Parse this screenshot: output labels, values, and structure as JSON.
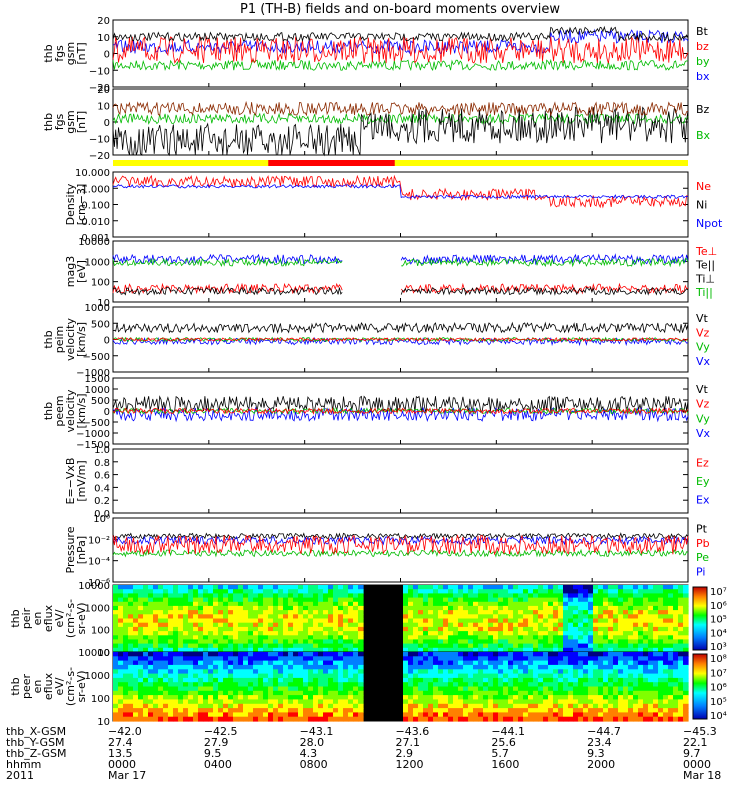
{
  "chart_data": {
    "type": "line",
    "title": "P1  (TH-B) fields and on-board moments overview",
    "panels": [
      {
        "ylabel": [
          "thb",
          "fgs",
          "gsm",
          "[nT]"
        ],
        "yticks": [
          "20",
          "10",
          "0",
          "−10",
          "−20"
        ],
        "ylim": [
          -20,
          20
        ],
        "legend": [
          {
            "text": "Bt",
            "color": "#000000"
          },
          {
            "text": "bz",
            "color": "#ff0000"
          },
          {
            "text": "by",
            "color": "#00bb00"
          },
          {
            "text": "bx",
            "color": "#0000ff"
          }
        ]
      },
      {
        "ylabel": [
          "thb",
          "fgs",
          "gsm",
          "[nT]"
        ],
        "yticks": [
          "20",
          "10",
          "0",
          "−10",
          "−20"
        ],
        "ylim": [
          -20,
          20
        ],
        "legend": [
          {
            "text": "Bz",
            "color": "#000000"
          },
          {
            "text": "Bx",
            "color": "#00bb00"
          }
        ]
      },
      {
        "ylabel": [
          "Density",
          "[cm−3]"
        ],
        "yticks": [
          "10.000",
          "1.000",
          "0.100",
          "0.010",
          "0.001"
        ],
        "scale": "log",
        "legend": [
          {
            "text": "Ne",
            "color": "#ff0000"
          },
          {
            "text": "Ni",
            "color": "#000000"
          },
          {
            "text": "Npot",
            "color": "#0000ff"
          }
        ]
      },
      {
        "ylabel": [
          "mag3",
          "[eV]"
        ],
        "yticks": [
          "10000",
          "1000",
          "100",
          "10"
        ],
        "scale": "log",
        "legend": [
          {
            "text": "Te⊥",
            "color": "#ff0000"
          },
          {
            "text": "Te||",
            "color": "#000000"
          },
          {
            "text": "Ti⊥",
            "color": "#000000"
          },
          {
            "text": "Ti||",
            "color": "#00bb00"
          }
        ]
      },
      {
        "ylabel": [
          "thb",
          "peim",
          "velocity",
          "[km/s]"
        ],
        "yticks": [
          "1000",
          "500",
          "0",
          "−500",
          "−1000"
        ],
        "ylim": [
          -1000,
          1000
        ],
        "legend": [
          {
            "text": "Vt",
            "color": "#000000"
          },
          {
            "text": "Vz",
            "color": "#ff0000"
          },
          {
            "text": "Vy",
            "color": "#00bb00"
          },
          {
            "text": "Vx",
            "color": "#0000ff"
          }
        ]
      },
      {
        "ylabel": [
          "thb",
          "peem",
          "velocity",
          "[km/s]"
        ],
        "yticks": [
          "1500",
          "1000",
          "500",
          "0",
          "−500",
          "−1000",
          "−1500"
        ],
        "ylim": [
          -1500,
          1500
        ],
        "legend": [
          {
            "text": "Vt",
            "color": "#000000"
          },
          {
            "text": "Vz",
            "color": "#ff0000"
          },
          {
            "text": "Vy",
            "color": "#00bb00"
          },
          {
            "text": "Vx",
            "color": "#0000ff"
          }
        ]
      },
      {
        "ylabel": [
          "E=−VxB",
          "[mV/m]"
        ],
        "yticks": [
          "1.0",
          "0.8",
          "0.6",
          "0.4",
          "0.2",
          "0.0"
        ],
        "ylim": [
          0,
          1
        ],
        "legend": [
          {
            "text": "Ez",
            "color": "#ff0000"
          },
          {
            "text": "Ey",
            "color": "#00bb00"
          },
          {
            "text": "Ex",
            "color": "#0000ff"
          }
        ]
      },
      {
        "ylabel": [
          "Pressure",
          "[nPa]"
        ],
        "yticks": [
          "10⁰",
          "10⁻²",
          "10⁻⁴",
          "10⁻⁶"
        ],
        "scale": "log",
        "legend": [
          {
            "text": "Pt",
            "color": "#000000"
          },
          {
            "text": "Pb",
            "color": "#ff0000"
          },
          {
            "text": "Pe",
            "color": "#00bb00"
          },
          {
            "text": "Pi",
            "color": "#0000ff"
          }
        ]
      },
      {
        "ylabel": [
          "thb",
          "peir",
          "en",
          "eflux",
          "eV/",
          "(cm²-s-",
          "sr-eV)"
        ],
        "yticks": [
          "10000",
          "1000",
          "100",
          "10"
        ],
        "type": "heatmap",
        "colorbar": [
          "10⁷",
          "10⁶",
          "10⁵",
          "10⁴",
          "10³"
        ]
      },
      {
        "ylabel": [
          "thb",
          "peer",
          "en",
          "eflux",
          "eV/",
          "(cm²-s-",
          "sr-eV)"
        ],
        "yticks": [
          "10000",
          "1000",
          "100",
          "10"
        ],
        "type": "heatmap",
        "colorbar": [
          "10⁸",
          "10⁷",
          "10⁶",
          "10⁵",
          "10⁴"
        ]
      }
    ],
    "x_axis": {
      "row_labels": [
        "thb_X-GSM",
        "thb_Y-GSM",
        "thb_Z-GSM",
        "hhmm",
        "2011"
      ],
      "columns": [
        [
          "−42.0",
          "27.4",
          "13.5",
          "0000",
          "Mar 17"
        ],
        [
          "−42.5",
          "27.9",
          "9.5",
          "0400",
          ""
        ],
        [
          "−43.1",
          "28.0",
          "4.3",
          "0800",
          ""
        ],
        [
          "−43.6",
          "27.1",
          "2.9",
          "1200",
          ""
        ],
        [
          "−44.1",
          "25.6",
          "5.7",
          "1600",
          ""
        ],
        [
          "−44.7",
          "23.4",
          "9.3",
          "2000",
          ""
        ],
        [
          "−45.3",
          "22.1",
          "9.7",
          "0000",
          "Mar 18"
        ]
      ]
    }
  }
}
